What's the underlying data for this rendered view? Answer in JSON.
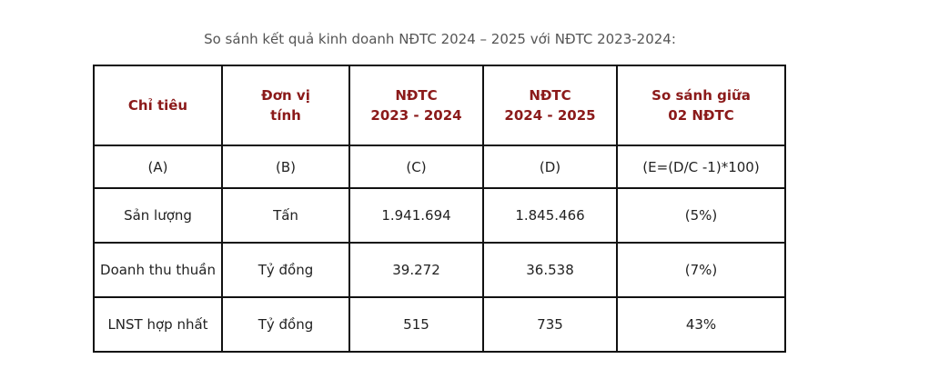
{
  "caption": "So sánh kết quả kinh doanh NĐTC 2024 – 2025 với NĐTC 2023-2024:",
  "table": {
    "header": [
      [
        "Chỉ tiêu"
      ],
      [
        "Đơn vị",
        "tính"
      ],
      [
        "NĐTC",
        "2023 - 2024"
      ],
      [
        "NĐTC",
        "2024 - 2025"
      ],
      [
        "So sánh giữa",
        "02 NĐTC"
      ]
    ],
    "rows": [
      [
        "(A)",
        "(B)",
        "(C)",
        "(D)",
        "(E=(D/C -1)*100)"
      ],
      [
        "Sản lượng",
        "Tấn",
        "1.941.694",
        "1.845.466",
        "(5%)"
      ],
      [
        "Doanh thu thuần",
        "Tỷ đồng",
        "39.272",
        "36.538",
        "(7%)"
      ],
      [
        "LNST hợp nhất",
        "Tỷ đồng",
        "515",
        "735",
        "43%"
      ]
    ]
  }
}
